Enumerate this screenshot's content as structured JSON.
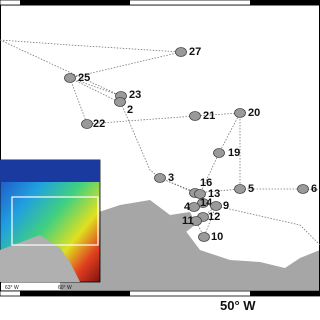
{
  "stations": [
    {
      "label": "27"
    },
    {
      "label": "25"
    },
    {
      "label": "23"
    },
    {
      "label": "2"
    },
    {
      "label": "22"
    },
    {
      "label": "21"
    },
    {
      "label": "20"
    },
    {
      "label": "19"
    },
    {
      "label": "3"
    },
    {
      "label": "16"
    },
    {
      "label": "13"
    },
    {
      "label": "5"
    },
    {
      "label": "6"
    },
    {
      "label": "14"
    },
    {
      "label": "9"
    },
    {
      "label": "4"
    },
    {
      "label": "12"
    },
    {
      "label": "11"
    },
    {
      "label": "10"
    }
  ],
  "axis": {
    "longitude_label": "50° W"
  },
  "inset": {
    "labels": [
      "63° W",
      "60° W"
    ]
  }
}
